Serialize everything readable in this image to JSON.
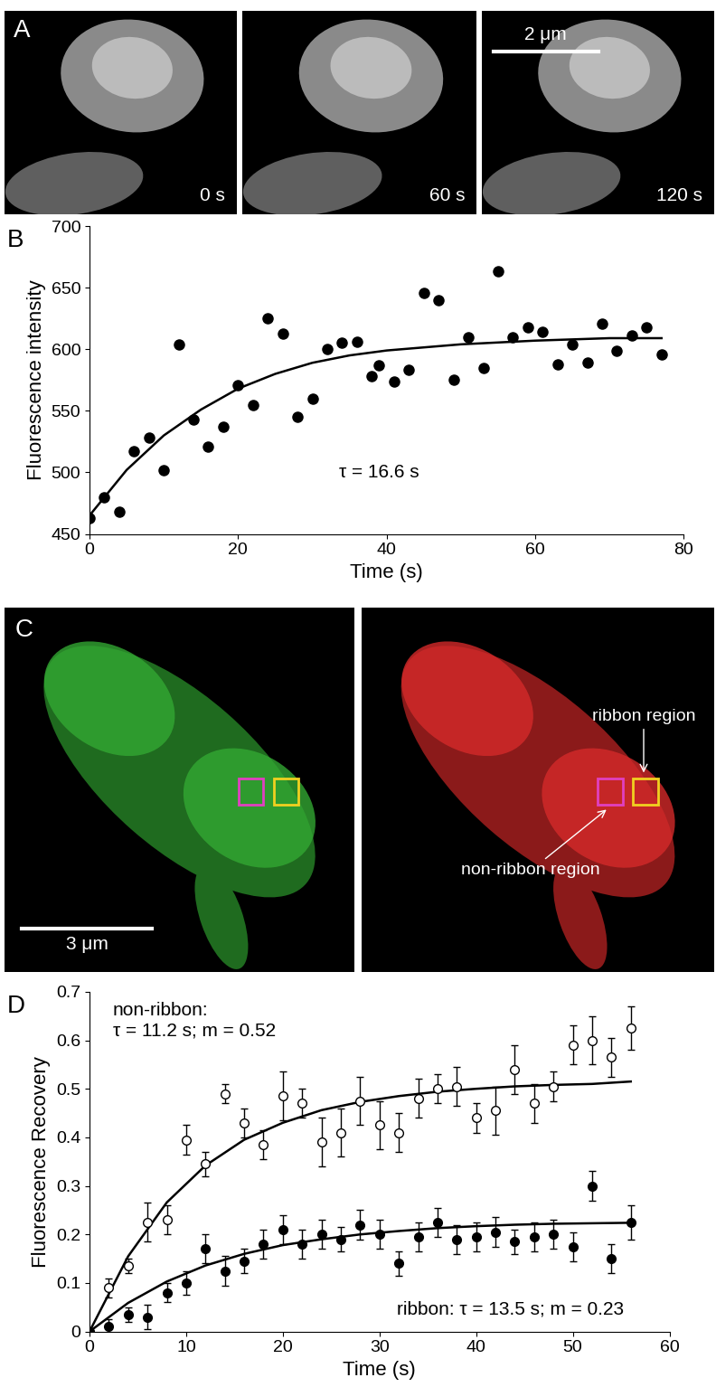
{
  "images": {
    "A": {
      "panel_label": "A",
      "frame_labels": [
        "0 s",
        "60 s",
        "120 s"
      ],
      "scale_bar_label": "2 μm"
    },
    "C": {
      "panel_label": "C",
      "scale_bar_label": "3 μm",
      "ribbon_label": "ribbon region",
      "non_ribbon_label": "non-ribbon region"
    }
  },
  "chart_data": [
    {
      "panel_label": "B",
      "type": "scatter",
      "xlabel": "Time (s)",
      "ylabel": "Fluorescence intensity",
      "xlim": [
        0,
        80
      ],
      "ylim": [
        450,
        700
      ],
      "xticks": [
        0,
        20,
        40,
        60,
        80
      ],
      "yticks": [
        450,
        500,
        550,
        600,
        650,
        700
      ],
      "annotations": [
        "τ = 16.6 s"
      ],
      "color": "black",
      "marker": "filled_circle",
      "x": [
        0,
        2,
        4,
        6,
        8,
        10,
        12,
        14,
        16,
        18,
        20,
        22,
        24,
        26,
        28,
        30,
        32,
        34,
        36,
        38,
        39,
        41,
        43,
        45,
        47,
        49,
        51,
        53,
        55,
        57,
        59,
        61,
        63,
        65,
        67,
        69,
        71,
        73,
        75,
        77
      ],
      "values": [
        463,
        480,
        468,
        517,
        528,
        502,
        604,
        543,
        521,
        537,
        571,
        555,
        625,
        613,
        545,
        560,
        600,
        605,
        606,
        578,
        587,
        574,
        583,
        646,
        640,
        575,
        610,
        585,
        663,
        610,
        618,
        614,
        588,
        604,
        589,
        621,
        599,
        611,
        618,
        596
      ],
      "fit": {
        "x": [
          0,
          5,
          10,
          15,
          20,
          25,
          30,
          35,
          40,
          50,
          60,
          70,
          77
        ],
        "values": [
          465,
          502,
          530,
          551,
          568,
          580,
          589,
          595,
          599,
          604,
          607,
          609,
          609
        ]
      }
    },
    {
      "panel_label": "D",
      "type": "scatter",
      "xlabel": "Time (s)",
      "ylabel": "Fluorescence Recovery",
      "xlim": [
        0,
        60
      ],
      "ylim": [
        0,
        0.7
      ],
      "xticks": [
        0,
        10,
        20,
        30,
        40,
        50,
        60
      ],
      "yticks": [
        0,
        0.1,
        0.2,
        0.3,
        0.4,
        0.5,
        0.6,
        0.7
      ],
      "series": [
        {
          "annotation": "non-ribbon:\nτ = 11.2 s; m = 0.52",
          "color": "black",
          "marker": "open_circle",
          "x": [
            0,
            2,
            4,
            6,
            8,
            10,
            12,
            14,
            16,
            18,
            20,
            22,
            24,
            26,
            28,
            30,
            32,
            34,
            36,
            38,
            40,
            42,
            44,
            46,
            48,
            50,
            52,
            54,
            56
          ],
          "values": [
            0,
            0.09,
            0.135,
            0.225,
            0.23,
            0.395,
            0.345,
            0.49,
            0.43,
            0.385,
            0.485,
            0.47,
            0.39,
            0.41,
            0.475,
            0.425,
            0.41,
            0.48,
            0.5,
            0.505,
            0.44,
            0.455,
            0.54,
            0.47,
            0.505,
            0.59,
            0.6,
            0.565,
            0.625
          ],
          "errors": [
            0,
            0.02,
            0.015,
            0.04,
            0.03,
            0.03,
            0.025,
            0.02,
            0.03,
            0.03,
            0.05,
            0.03,
            0.05,
            0.05,
            0.05,
            0.05,
            0.04,
            0.04,
            0.03,
            0.04,
            0.03,
            0.05,
            0.05,
            0.04,
            0.03,
            0.04,
            0.05,
            0.04,
            0.045
          ],
          "fit": {
            "x": [
              0,
              4,
              8,
              12,
              16,
              20,
              24,
              28,
              32,
              36,
              40,
              44,
              48,
              52,
              56
            ],
            "values": [
              0,
              0.155,
              0.266,
              0.342,
              0.395,
              0.43,
              0.456,
              0.473,
              0.485,
              0.494,
              0.5,
              0.505,
              0.508,
              0.51,
              0.515
            ]
          }
        },
        {
          "annotation": "ribbon: τ = 13.5 s; m = 0.23",
          "color": "black",
          "marker": "filled_circle",
          "x": [
            0,
            2,
            4,
            6,
            8,
            10,
            12,
            14,
            16,
            18,
            20,
            22,
            24,
            26,
            28,
            30,
            32,
            34,
            36,
            38,
            40,
            42,
            44,
            46,
            48,
            50,
            52,
            54,
            56
          ],
          "values": [
            0,
            0.01,
            0.035,
            0.03,
            0.08,
            0.1,
            0.17,
            0.125,
            0.145,
            0.18,
            0.21,
            0.18,
            0.2,
            0.19,
            0.22,
            0.2,
            0.14,
            0.195,
            0.225,
            0.19,
            0.195,
            0.205,
            0.185,
            0.195,
            0.2,
            0.175,
            0.3,
            0.15,
            0.225
          ],
          "errors": [
            0,
            0.015,
            0.015,
            0.025,
            0.02,
            0.025,
            0.03,
            0.03,
            0.025,
            0.03,
            0.03,
            0.03,
            0.03,
            0.025,
            0.03,
            0.03,
            0.025,
            0.03,
            0.03,
            0.03,
            0.03,
            0.03,
            0.025,
            0.03,
            0.03,
            0.03,
            0.03,
            0.03,
            0.035
          ],
          "fit": {
            "x": [
              0,
              4,
              8,
              12,
              16,
              20,
              24,
              28,
              32,
              36,
              40,
              44,
              48,
              52,
              56
            ],
            "values": [
              0,
              0.059,
              0.103,
              0.136,
              0.16,
              0.178,
              0.19,
              0.2,
              0.207,
              0.213,
              0.217,
              0.22,
              0.222,
              0.223,
              0.224
            ]
          }
        }
      ]
    }
  ]
}
